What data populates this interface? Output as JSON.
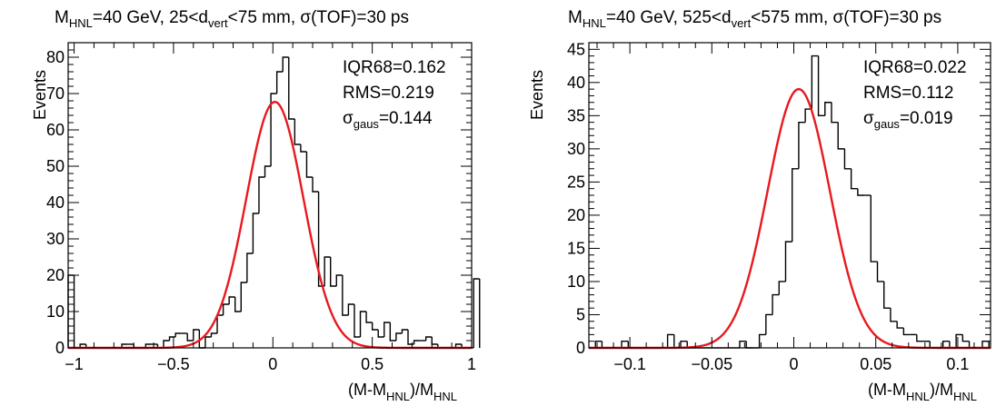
{
  "colors": {
    "histogram": "#000000",
    "fit": "#e8191e",
    "frame": "#000000"
  },
  "chart_data": [
    {
      "type": "histogram",
      "title_main": "M",
      "title_main_sub": "HNL",
      "title_rest1": "=40 GeV, 25<d",
      "title_rest1_sub": "vert",
      "title_rest2": "<75 mm, σ(TOF)=30 ps",
      "ylabel": "Events",
      "xlabel_a": "(M-M",
      "xlabel_a_sub": "HNL",
      "xlabel_b": ")/M",
      "xlabel_b_sub": "HNL",
      "xlim": [
        -1.03,
        1.0
      ],
      "ylim": [
        0,
        84
      ],
      "bin_start": -1.03,
      "bin_width": 0.03,
      "counts": [
        20,
        0,
        1,
        0,
        0,
        0,
        0,
        0,
        0,
        1,
        1,
        0,
        0,
        1,
        1,
        0,
        2,
        3,
        4,
        4,
        2,
        5,
        0,
        3,
        4,
        9,
        12,
        14,
        10,
        18,
        26,
        37,
        47,
        50,
        70,
        76,
        80,
        63,
        56,
        54,
        47,
        43,
        17,
        25,
        17,
        20,
        9,
        12,
        3,
        10,
        7,
        5,
        3,
        7,
        2,
        4,
        5,
        1,
        2,
        2,
        3,
        1,
        0,
        0,
        0,
        1,
        0,
        0,
        19
      ],
      "fit": {
        "amplitude": 67.7,
        "mean": 0.01,
        "sigma": 0.144
      },
      "stats": [
        {
          "label": "IQR68=0.162"
        },
        {
          "label": "RMS=0.219"
        },
        {
          "prefix": "σ",
          "sub": "gaus",
          "value": "=0.144"
        }
      ],
      "xticks": [
        {
          "value": -1,
          "label": "−1"
        },
        {
          "value": -0.5,
          "label": "−0.5"
        },
        {
          "value": 0,
          "label": "0"
        },
        {
          "value": 0.5,
          "label": "0.5"
        },
        {
          "value": 1,
          "label": "1"
        }
      ],
      "yticks": [
        0,
        10,
        20,
        30,
        40,
        50,
        60,
        70,
        80
      ]
    },
    {
      "type": "histogram",
      "title_main": "M",
      "title_main_sub": "HNL",
      "title_rest1": "=40 GeV, 525<d",
      "title_rest1_sub": "vert",
      "title_rest2": "<575 mm, σ(TOF)=30 ps",
      "ylabel": "Events",
      "xlabel_a": "(M-M",
      "xlabel_a_sub": "HNL",
      "xlabel_b": ")/M",
      "xlabel_b_sub": "HNL",
      "xlim": [
        -0.125,
        0.12
      ],
      "ylim": [
        0,
        46
      ],
      "bin_start": -0.125,
      "bin_width": 0.004,
      "counts": [
        0,
        1,
        0,
        0,
        0,
        1,
        0,
        0,
        0,
        0,
        0,
        0,
        2,
        0,
        1,
        0,
        0,
        0,
        0,
        0,
        0,
        0,
        0,
        1,
        0,
        0,
        2,
        5,
        8,
        10,
        16,
        27,
        34,
        36,
        44,
        35,
        37,
        34,
        30,
        27,
        24,
        23,
        23,
        13,
        10,
        6,
        4,
        3,
        2,
        2,
        1,
        1,
        0,
        0,
        1,
        0,
        2,
        1,
        0,
        0,
        1
      ],
      "fit": {
        "amplitude": 39,
        "mean": 0.003,
        "sigma": 0.019
      },
      "stats": [
        {
          "label": "IQR68=0.022"
        },
        {
          "label": "RMS=0.112"
        },
        {
          "prefix": "σ",
          "sub": "gaus",
          "value": "=0.019"
        }
      ],
      "xticks": [
        {
          "value": -0.1,
          "label": "−0.1"
        },
        {
          "value": -0.05,
          "label": "−0.05"
        },
        {
          "value": 0,
          "label": "0"
        },
        {
          "value": 0.05,
          "label": "0.05"
        },
        {
          "value": 0.1,
          "label": "0.1"
        }
      ],
      "yticks": [
        0,
        5,
        10,
        15,
        20,
        25,
        30,
        35,
        40,
        45
      ]
    }
  ]
}
